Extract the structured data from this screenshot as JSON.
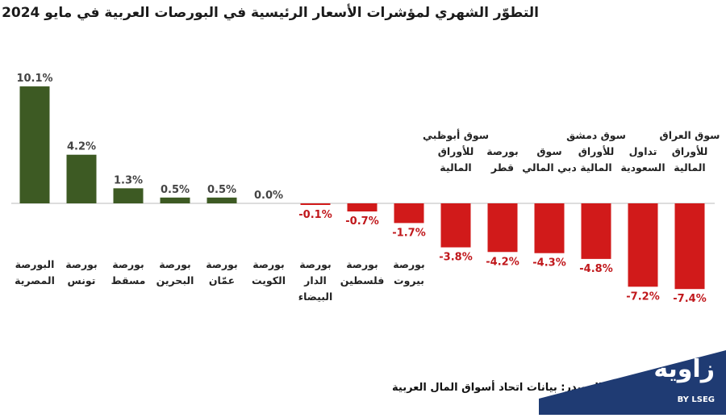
{
  "chart_data": {
    "type": "bar",
    "title": "التطوّر الشهري لمؤشرات الأسعار الرئيسية في البورصات العربية في مايو 2024",
    "categories": [
      [
        "البورصة",
        "المصرية"
      ],
      [
        "بورصة",
        "تونس"
      ],
      [
        "بورصة",
        "مسقط"
      ],
      [
        "بورصة",
        "البحرين"
      ],
      [
        "بورصة",
        "عمّان"
      ],
      [
        "بورصة",
        "الكويت"
      ],
      [
        "بورصة",
        "الدار",
        "البيضاء"
      ],
      [
        "بورصة",
        "فلسطين"
      ],
      [
        "بورصة",
        "بيروت"
      ],
      [
        "سوق أبوظبي",
        "للأوراق",
        "المالية"
      ],
      [
        "بورصة",
        "قطر"
      ],
      [
        "سوق",
        "دبي المالي"
      ],
      [
        "سوق دمشق",
        "للأوراق",
        "المالية"
      ],
      [
        "تداول",
        "السعودية"
      ],
      [
        "سوق العراق",
        "للأوراق",
        "المالية"
      ]
    ],
    "values": [
      10.1,
      4.2,
      1.3,
      0.5,
      0.5,
      0.0,
      -0.1,
      -0.7,
      -1.7,
      -3.8,
      -4.2,
      -4.3,
      -4.8,
      -7.2,
      -7.4
    ],
    "value_labels": [
      "10.1%",
      "4.2%",
      "1.3%",
      "0.5%",
      "0.5%",
      "0.0%",
      "-0.1%",
      "-0.7%",
      "-1.7%",
      "-3.8%",
      "-4.2%",
      "-4.3%",
      "-4.8%",
      "-7.2%",
      "-7.4%"
    ],
    "ylim": [
      -7.4,
      10.1
    ],
    "grid": false,
    "colors": {
      "positive": "#3d5a23",
      "negative": "#d11a1a",
      "positive_label": "#444444",
      "negative_label": "#c0171b",
      "category": "#222222",
      "axis": "#bbbbbb"
    }
  },
  "footer": {
    "source": "المصدر: بيانات اتحاد أسواق المال العربية",
    "logo_text": "زاوية",
    "logo_sub": "BY LSEG",
    "logo_color": "#1f3b73"
  }
}
